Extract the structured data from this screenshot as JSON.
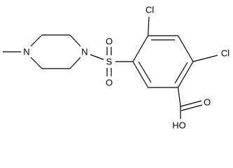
{
  "atoms": {
    "cl_top": "Cl",
    "cl_right": "Cl",
    "n_methyl": "N",
    "n_sulfonyl": "N",
    "s": "S",
    "o_up": "O",
    "o_down": "O",
    "o_carbonyl": "O",
    "hydroxyl": "HO"
  }
}
